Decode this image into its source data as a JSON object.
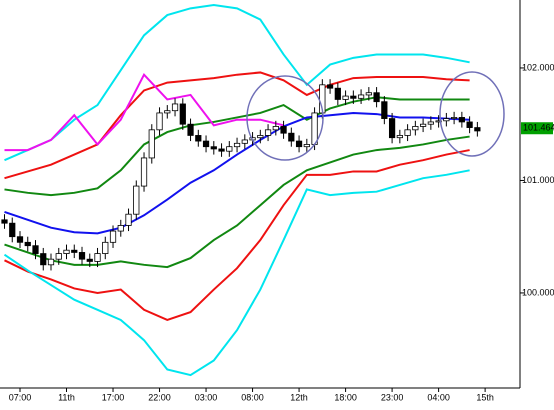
{
  "chart_data": {
    "type": "candlestick",
    "x": [
      0,
      1,
      2,
      3,
      4,
      5,
      6,
      7,
      8,
      9,
      10,
      11,
      12,
      13,
      14,
      15,
      16,
      17,
      18,
      19,
      20,
      21,
      22,
      23,
      24,
      25,
      26,
      27,
      28,
      29,
      30,
      31,
      32,
      33,
      34,
      35,
      36,
      37,
      38,
      39,
      40,
      41,
      42,
      43,
      44,
      45,
      46,
      47,
      48,
      49,
      50,
      51,
      52,
      53,
      54,
      55,
      56,
      57,
      58,
      59,
      60,
      61
    ],
    "open": [
      100.65,
      100.62,
      100.5,
      100.45,
      100.42,
      100.35,
      100.25,
      100.3,
      100.35,
      100.38,
      100.36,
      100.3,
      100.28,
      100.35,
      100.45,
      100.55,
      100.6,
      100.7,
      100.95,
      101.2,
      101.45,
      101.6,
      101.62,
      101.68,
      101.5,
      101.4,
      101.35,
      101.3,
      101.28,
      101.26,
      101.3,
      101.33,
      101.36,
      101.38,
      101.4,
      101.45,
      101.48,
      101.42,
      101.35,
      101.3,
      101.32,
      101.6,
      101.85,
      101.82,
      101.72,
      101.75,
      101.73,
      101.76,
      101.78,
      101.7,
      101.55,
      101.38,
      101.4,
      101.45,
      101.48,
      101.5,
      101.52,
      101.53,
      101.55,
      101.56,
      101.52,
      101.47
    ],
    "high": [
      100.7,
      100.67,
      100.55,
      100.5,
      100.47,
      100.4,
      100.35,
      100.4,
      100.43,
      100.43,
      100.41,
      100.35,
      100.4,
      100.5,
      100.6,
      100.65,
      100.75,
      101.0,
      101.25,
      101.5,
      101.65,
      101.67,
      101.73,
      101.73,
      101.55,
      101.45,
      101.4,
      101.35,
      101.33,
      101.35,
      101.38,
      101.41,
      101.43,
      101.45,
      101.5,
      101.53,
      101.53,
      101.47,
      101.4,
      101.37,
      101.65,
      101.9,
      101.9,
      101.87,
      101.8,
      101.8,
      101.81,
      101.83,
      101.83,
      101.75,
      101.6,
      101.45,
      101.5,
      101.53,
      101.55,
      101.57,
      101.58,
      101.6,
      101.61,
      101.61,
      101.57,
      101.52
    ],
    "low": [
      100.57,
      100.45,
      100.4,
      100.37,
      100.3,
      100.2,
      100.2,
      100.25,
      100.3,
      100.31,
      100.25,
      100.23,
      100.23,
      100.3,
      100.4,
      100.5,
      100.55,
      100.65,
      100.9,
      101.15,
      101.4,
      101.55,
      101.57,
      101.45,
      101.35,
      101.3,
      101.25,
      101.23,
      101.21,
      101.21,
      101.25,
      101.28,
      101.31,
      101.33,
      101.35,
      101.4,
      101.37,
      101.3,
      101.25,
      101.25,
      101.27,
      101.55,
      101.77,
      101.67,
      101.67,
      101.68,
      101.68,
      101.71,
      101.65,
      101.5,
      101.33,
      101.33,
      101.35,
      101.4,
      101.43,
      101.45,
      101.47,
      101.48,
      101.5,
      101.47,
      101.42,
      101.39
    ],
    "close": [
      100.62,
      100.5,
      100.45,
      100.42,
      100.35,
      100.25,
      100.3,
      100.35,
      100.38,
      100.36,
      100.3,
      100.28,
      100.35,
      100.45,
      100.55,
      100.6,
      100.7,
      100.95,
      101.2,
      101.45,
      101.6,
      101.62,
      101.68,
      101.5,
      101.4,
      101.35,
      101.3,
      101.28,
      101.26,
      101.3,
      101.33,
      101.36,
      101.38,
      101.4,
      101.45,
      101.48,
      101.42,
      101.35,
      101.3,
      101.32,
      101.6,
      101.85,
      101.82,
      101.72,
      101.75,
      101.73,
      101.76,
      101.78,
      101.7,
      101.55,
      101.38,
      101.4,
      101.45,
      101.48,
      101.5,
      101.52,
      101.53,
      101.55,
      101.56,
      101.52,
      101.47,
      101.44
    ],
    "bands": {
      "x": [
        0,
        3,
        6,
        9,
        12,
        15,
        18,
        21,
        24,
        27,
        30,
        33,
        36,
        39,
        42,
        45,
        48,
        51,
        54,
        57,
        60
      ],
      "series": [
        {
          "color": "#00e5ee",
          "values": [
            101.18,
            101.27,
            101.36,
            101.54,
            101.67,
            101.98,
            102.29,
            102.47,
            102.53,
            102.56,
            102.53,
            102.43,
            102.12,
            101.85,
            102.03,
            102.09,
            102.12,
            102.12,
            102.12,
            102.09,
            102.05
          ]
        },
        {
          "color": "#ee1111",
          "values": [
            101.02,
            101.08,
            101.14,
            101.23,
            101.32,
            101.58,
            101.8,
            101.87,
            101.89,
            101.91,
            101.94,
            101.96,
            101.89,
            101.76,
            101.85,
            101.91,
            101.92,
            101.92,
            101.92,
            101.9,
            101.89
          ]
        },
        {
          "color": "#118811",
          "values": [
            100.92,
            100.89,
            100.87,
            100.89,
            100.93,
            101.09,
            101.32,
            101.43,
            101.49,
            101.52,
            101.56,
            101.6,
            101.67,
            101.54,
            101.64,
            101.7,
            101.74,
            101.72,
            101.72,
            101.72,
            101.72
          ]
        },
        {
          "color": "#1111ee",
          "values": [
            100.72,
            100.65,
            100.58,
            100.54,
            100.53,
            100.58,
            100.69,
            100.83,
            100.98,
            101.09,
            101.23,
            101.36,
            101.48,
            101.56,
            101.58,
            101.6,
            101.59,
            101.56,
            101.56,
            101.55,
            101.54
          ]
        },
        {
          "color": "#118811",
          "values": [
            100.43,
            100.36,
            100.29,
            100.25,
            100.25,
            100.28,
            100.25,
            100.23,
            100.31,
            100.47,
            100.6,
            100.78,
            100.96,
            101.09,
            101.16,
            101.23,
            101.27,
            101.29,
            101.32,
            101.36,
            101.39
          ]
        },
        {
          "color": "#ee1111",
          "values": [
            100.29,
            100.19,
            100.12,
            100.04,
            100.0,
            100.03,
            99.85,
            99.76,
            99.83,
            100.03,
            100.22,
            100.47,
            100.78,
            101.05,
            101.05,
            101.08,
            101.08,
            101.14,
            101.18,
            101.23,
            101.27
          ]
        },
        {
          "color": "#00e5ee",
          "values": [
            100.34,
            100.2,
            100.07,
            99.94,
            99.85,
            99.76,
            99.58,
            99.32,
            99.27,
            99.4,
            99.67,
            100.03,
            100.47,
            100.92,
            100.87,
            100.89,
            100.9,
            100.96,
            101.02,
            101.05,
            101.09
          ]
        },
        {
          "color": "#ee11ee",
          "values": [
            101.27,
            101.27,
            101.36,
            101.58,
            101.32,
            101.54,
            101.94,
            101.72,
            101.76,
            101.49,
            101.54,
            101.54,
            101.49,
            null,
            null,
            null,
            null,
            null,
            null,
            null,
            null
          ]
        }
      ]
    },
    "last_price": 101.464,
    "xlim": [
      -0.58,
      66.5
    ],
    "ylim": [
      99.155,
      102.604
    ],
    "xticks": [
      {
        "value": 2,
        "label": "07:00"
      },
      {
        "value": 8,
        "label": "11th"
      },
      {
        "value": 14,
        "label": "17:00"
      },
      {
        "value": 20,
        "label": "22:00"
      },
      {
        "value": 26,
        "label": "03:00"
      },
      {
        "value": 32,
        "label": "08:00"
      },
      {
        "value": 38,
        "label": "12th"
      },
      {
        "value": 44,
        "label": "18:00"
      },
      {
        "value": 50,
        "label": "23:00"
      },
      {
        "value": 56,
        "label": "04:00"
      },
      {
        "value": 62,
        "label": "15th"
      }
    ],
    "yticks": [
      {
        "value": 100,
        "label": "100.000"
      },
      {
        "value": 101,
        "label": "101.000"
      },
      {
        "value": 102,
        "label": "102.000"
      }
    ]
  }
}
